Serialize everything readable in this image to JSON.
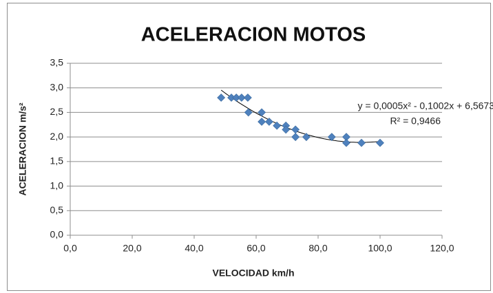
{
  "chart_data": {
    "type": "scatter",
    "title": "ACELERACION MOTOS",
    "x_label": "VELOCIDAD km/h",
    "y_label": "ACELERACION m/s²",
    "series": [
      {
        "name": "ACELERACION",
        "color": "#4f81bd",
        "x": [
          48.7,
          52.0,
          53.6,
          55.3,
          57.3,
          57.5,
          61.8,
          61.8,
          64.2,
          66.7,
          69.6,
          69.6,
          72.7,
          72.7,
          76.2,
          84.4,
          89.1,
          89.1,
          94.0,
          100.0
        ],
        "values": [
          2.8,
          2.8,
          2.8,
          2.8,
          2.8,
          2.5,
          2.5,
          2.31,
          2.31,
          2.23,
          2.23,
          2.15,
          2.15,
          2.0,
          2.0,
          2.0,
          2.0,
          1.88,
          1.88,
          1.88
        ]
      }
    ],
    "trendline": {
      "type": "polynomial",
      "equation": "y = 0,0005x² - 0,1002x + 6,5673",
      "r2": "R² = 0,9466"
    },
    "xlim": [
      0,
      120
    ],
    "xticks": [
      {
        "value": 0,
        "label": "0,0"
      },
      {
        "value": 20,
        "label": "20,0"
      },
      {
        "value": 40,
        "label": "40,0"
      },
      {
        "value": 60,
        "label": "60,0"
      },
      {
        "value": 80,
        "label": "80,0"
      },
      {
        "value": 100,
        "label": "100,0"
      },
      {
        "value": 120,
        "label": "120,0"
      }
    ],
    "ylim": [
      0,
      3.5
    ],
    "yticks": [
      {
        "value": 0,
        "label": "0,0"
      },
      {
        "value": 0.5,
        "label": "0,5"
      },
      {
        "value": 1,
        "label": "1,0"
      },
      {
        "value": 1.5,
        "label": "1,5"
      },
      {
        "value": 2,
        "label": "2,0"
      },
      {
        "value": 2.5,
        "label": "2,5"
      },
      {
        "value": 3,
        "label": "3,0"
      },
      {
        "value": 3.5,
        "label": "3,5"
      }
    ],
    "grid": true
  }
}
